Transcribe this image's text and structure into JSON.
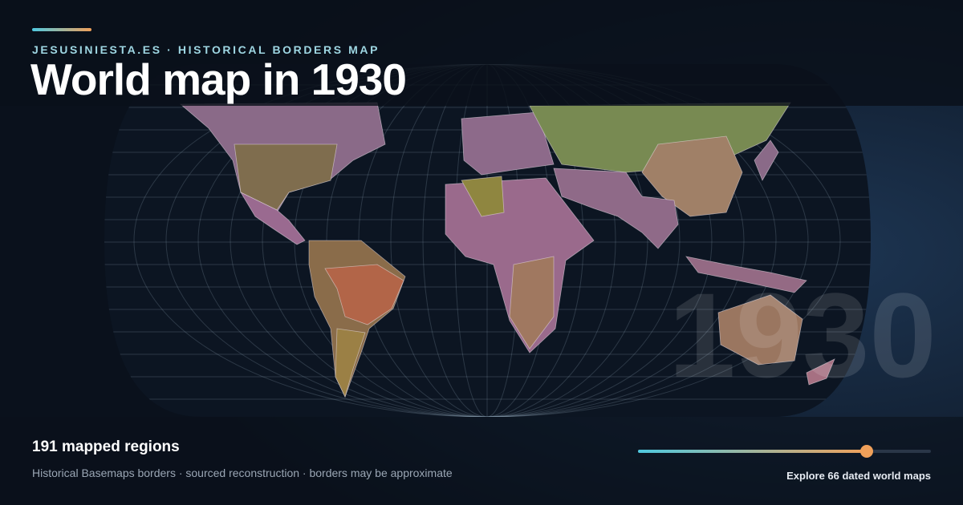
{
  "header": {
    "kicker": "JESUSINIESTA.ES · HISTORICAL BORDERS MAP",
    "title": "World map in 1930"
  },
  "watermark": "1930",
  "footer": {
    "stat": "191 mapped regions",
    "note": "Historical Basemaps borders · sourced reconstruction · borders may be approximate",
    "cta": "Explore 66 dated world maps"
  }
}
